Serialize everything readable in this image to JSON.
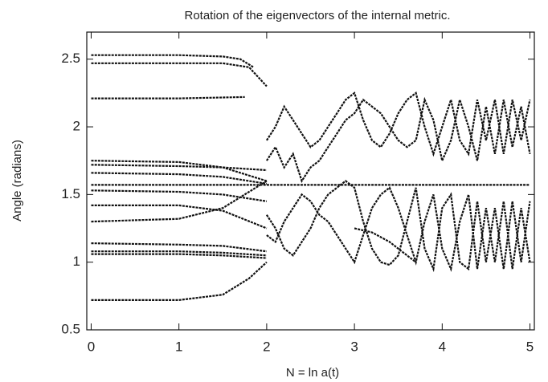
{
  "chart_data": {
    "type": "line",
    "title": "Rotation of the eigenvectors of the internal metric.",
    "x_label": "N = ln a(t)",
    "y_label": "Angle (radians)",
    "xlim": [
      -0.05,
      5.05
    ],
    "ylim": [
      0.5,
      2.7
    ],
    "xticks": [
      0,
      1,
      2,
      3,
      4,
      5
    ],
    "yticks": [
      0.5,
      1,
      1.5,
      2,
      2.5
    ],
    "grid": false,
    "x": [
      2.0,
      2.1,
      2.2,
      2.3,
      2.4,
      2.5,
      2.6,
      2.7,
      2.8,
      2.9,
      3.0,
      3.1,
      3.2,
      3.3,
      3.4,
      3.5,
      3.6,
      3.7,
      3.8,
      3.9,
      4.0,
      4.1,
      4.2,
      4.3,
      4.4,
      4.5,
      4.6,
      4.7,
      4.8,
      4.9,
      5.0
    ],
    "series": [
      {
        "color": "#111",
        "x": [
          0,
          1,
          1.5,
          1.7,
          1.85
        ],
        "values": [
          2.53,
          2.53,
          2.52,
          2.5,
          2.44
        ]
      },
      {
        "color": "#111",
        "x": [
          0,
          1,
          1.5,
          1.8,
          2.0
        ],
        "values": [
          2.47,
          2.47,
          2.47,
          2.44,
          2.3
        ]
      },
      {
        "color": "#111",
        "x": [
          0,
          1,
          1.75
        ],
        "values": [
          2.21,
          2.21,
          2.22
        ]
      },
      {
        "color": "#111",
        "x": [
          0,
          1,
          1.5,
          2.0
        ],
        "values": [
          1.75,
          1.74,
          1.7,
          1.6
        ]
      },
      {
        "color": "#111",
        "x": [
          0,
          1,
          1.5,
          2.0
        ],
        "values": [
          1.72,
          1.71,
          1.7,
          1.68
        ]
      },
      {
        "color": "#111",
        "x": [
          0,
          1,
          1.5,
          2.0
        ],
        "values": [
          1.66,
          1.65,
          1.63,
          1.58
        ]
      },
      {
        "color": "#111",
        "x": [
          0,
          5
        ],
        "values": [
          1.5708,
          1.5708
        ]
      },
      {
        "color": "#111",
        "x": [
          0,
          1,
          1.5,
          2.0
        ],
        "values": [
          1.53,
          1.52,
          1.5,
          1.45
        ]
      },
      {
        "color": "#111",
        "x": [
          0,
          1,
          1.5,
          2.0
        ],
        "values": [
          1.42,
          1.42,
          1.38,
          1.25
        ]
      },
      {
        "color": "#111",
        "x": [
          0,
          1,
          1.5,
          2.0
        ],
        "values": [
          1.3,
          1.32,
          1.4,
          1.6
        ]
      },
      {
        "color": "#111",
        "x": [
          0,
          1,
          1.5,
          2.0
        ],
        "values": [
          1.14,
          1.13,
          1.12,
          1.08
        ]
      },
      {
        "color": "#111",
        "x": [
          0,
          1,
          1.5,
          2.0
        ],
        "values": [
          1.08,
          1.08,
          1.07,
          1.05
        ]
      },
      {
        "color": "#111",
        "x": [
          0,
          1,
          1.5,
          2.0
        ],
        "values": [
          1.06,
          1.06,
          1.05,
          1.03
        ]
      },
      {
        "color": "#111",
        "x": [
          0,
          1,
          1.5,
          1.8,
          2.0
        ],
        "values": [
          0.72,
          0.72,
          0.76,
          0.88,
          1.0
        ]
      },
      {
        "color": "#111",
        "values": [
          1.9,
          2.0,
          2.15,
          2.05,
          1.95,
          1.85,
          1.9,
          2.0,
          2.1,
          2.2,
          2.25,
          2.05,
          1.9,
          1.85,
          1.95,
          2.1,
          2.2,
          2.25,
          2.0,
          1.8,
          2.0,
          2.2,
          1.9,
          1.8,
          2.2,
          1.9,
          2.2,
          1.8,
          2.2,
          1.9,
          2.2
        ]
      },
      {
        "color": "#111",
        "values": [
          1.75,
          1.85,
          1.7,
          1.8,
          1.6,
          1.7,
          1.75,
          1.85,
          1.95,
          2.05,
          2.1,
          2.2,
          2.15,
          2.1,
          2.0,
          1.9,
          1.85,
          1.9,
          2.2,
          2.05,
          1.75,
          1.9,
          2.2,
          2.0,
          1.75,
          2.15,
          1.8,
          2.2,
          1.85,
          2.15,
          1.8
        ]
      },
      {
        "color": "#111",
        "values": [
          1.2,
          1.15,
          1.3,
          1.4,
          1.5,
          1.45,
          1.35,
          1.3,
          1.2,
          1.1,
          1.0,
          1.2,
          1.4,
          1.5,
          1.55,
          1.4,
          1.2,
          1.0,
          1.3,
          1.5,
          1.1,
          0.95,
          1.3,
          1.5,
          0.95,
          1.4,
          1.0,
          1.45,
          0.95,
          1.4,
          1.0
        ]
      },
      {
        "color": "#111",
        "values": [
          1.35,
          1.25,
          1.1,
          1.05,
          1.15,
          1.25,
          1.4,
          1.5,
          1.55,
          1.6,
          1.55,
          1.3,
          1.1,
          1.0,
          0.98,
          1.05,
          1.3,
          1.55,
          1.1,
          0.95,
          1.4,
          1.5,
          1.0,
          0.95,
          1.45,
          1.0,
          1.4,
          0.95,
          1.45,
          1.0,
          1.45
        ]
      },
      {
        "color": "#111",
        "x": [
          3.0,
          3.2,
          3.4,
          3.6,
          3.7
        ],
        "values": [
          1.25,
          1.22,
          1.15,
          1.05,
          1.0
        ]
      }
    ]
  }
}
